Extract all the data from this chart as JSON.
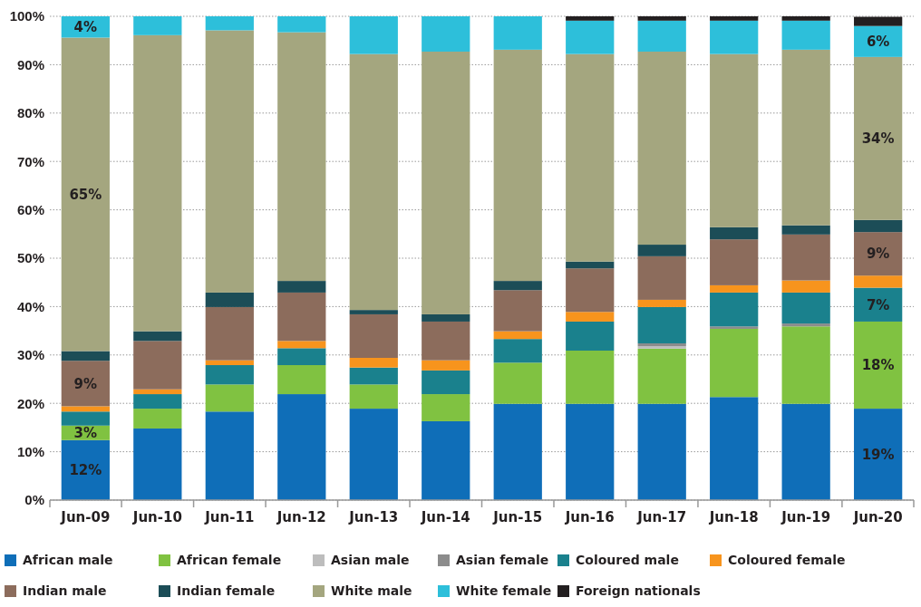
{
  "chart_data": {
    "type": "bar",
    "stacked": true,
    "categories": [
      "Jun-09",
      "Jun-10",
      "Jun-11",
      "Jun-12",
      "Jun-13",
      "Jun-14",
      "Jun-15",
      "Jun-16",
      "Jun-17",
      "Jun-18",
      "Jun-19",
      "Jun-20"
    ],
    "ylim": [
      0,
      100
    ],
    "yticks": [
      {
        "value": 0,
        "label": "0%"
      },
      {
        "value": 10,
        "label": "10%"
      },
      {
        "value": 20,
        "label": "20%"
      },
      {
        "value": 30,
        "label": "30%"
      },
      {
        "value": 40,
        "label": "40%"
      },
      {
        "value": 50,
        "label": "50%"
      },
      {
        "value": 60,
        "label": "60%"
      },
      {
        "value": 70,
        "label": "70%"
      },
      {
        "value": 80,
        "label": "80%"
      },
      {
        "value": 90,
        "label": "90%"
      },
      {
        "value": 100,
        "label": "100%"
      }
    ],
    "grid": "y",
    "legend": "bottom",
    "series": [
      {
        "name": "African male",
        "color": "#0f6eb8",
        "values": [
          12.4,
          14.8,
          18.3,
          21.9,
          18.9,
          16.3,
          19.9,
          19.9,
          19.9,
          21.3,
          19.9,
          18.9
        ],
        "value_labels": [
          "12%",
          null,
          null,
          null,
          null,
          null,
          null,
          null,
          null,
          null,
          null,
          "19%"
        ]
      },
      {
        "name": "African female",
        "color": "#80c241",
        "values": [
          3.0,
          4.1,
          5.6,
          6.0,
          5.0,
          5.6,
          8.5,
          11.0,
          11.4,
          14.1,
          16.0,
          18.0
        ],
        "value_labels": [
          "3%",
          null,
          null,
          null,
          null,
          null,
          null,
          null,
          null,
          null,
          null,
          "18%"
        ]
      },
      {
        "name": "Asian male",
        "color": "#bdbdbd",
        "values": [
          0,
          0,
          0,
          0,
          0,
          0,
          0,
          0,
          0.5,
          0,
          0,
          0
        ]
      },
      {
        "name": "Asian female",
        "color": "#8c8c8c",
        "values": [
          0,
          0,
          0,
          0,
          0,
          0,
          0,
          0,
          0.6,
          0.5,
          0.6,
          0
        ]
      },
      {
        "name": "Coloured male",
        "color": "#1a818d",
        "values": [
          2.9,
          3.0,
          4.0,
          3.5,
          3.5,
          4.9,
          4.9,
          6.0,
          7.5,
          7.0,
          6.4,
          7.0
        ],
        "value_labels": [
          null,
          null,
          null,
          null,
          null,
          null,
          null,
          null,
          null,
          null,
          null,
          "7%"
        ]
      },
      {
        "name": "Coloured female",
        "color": "#f7941d",
        "values": [
          1.1,
          1.0,
          1.0,
          1.5,
          2.0,
          2.1,
          1.6,
          2.0,
          1.5,
          1.5,
          2.5,
          2.5
        ]
      },
      {
        "name": "Indian male",
        "color": "#8c6c5c",
        "values": [
          9.4,
          10.0,
          11.0,
          10.0,
          9.0,
          8.0,
          8.5,
          9.0,
          9.0,
          9.5,
          9.5,
          9.0
        ],
        "value_labels": [
          "9%",
          null,
          null,
          null,
          null,
          null,
          null,
          null,
          null,
          null,
          null,
          "9%"
        ]
      },
      {
        "name": "Indian female",
        "color": "#1c4d57",
        "values": [
          2.0,
          2.0,
          3.0,
          2.4,
          0.9,
          1.5,
          1.9,
          1.4,
          2.4,
          2.5,
          1.9,
          2.5
        ]
      },
      {
        "name": "White male",
        "color": "#a4a67f",
        "values": [
          64.8,
          61.2,
          54.2,
          51.4,
          52.9,
          54.3,
          47.8,
          42.9,
          39.9,
          35.8,
          36.3,
          33.7
        ],
        "value_labels": [
          "65%",
          null,
          null,
          null,
          null,
          null,
          null,
          null,
          null,
          null,
          null,
          "34%"
        ]
      },
      {
        "name": "White female",
        "color": "#2dbfda",
        "values": [
          4.4,
          3.9,
          2.9,
          3.3,
          7.8,
          7.3,
          6.9,
          6.9,
          6.4,
          6.9,
          6.0,
          6.4
        ],
        "value_labels": [
          "4%",
          null,
          null,
          null,
          null,
          null,
          null,
          null,
          null,
          null,
          null,
          "6%"
        ]
      },
      {
        "name": "Foreign nationals",
        "color": "#231f20",
        "values": [
          0,
          0,
          0,
          0,
          0,
          0,
          0,
          0.9,
          0.9,
          0.9,
          0.9,
          1.9
        ]
      }
    ]
  }
}
